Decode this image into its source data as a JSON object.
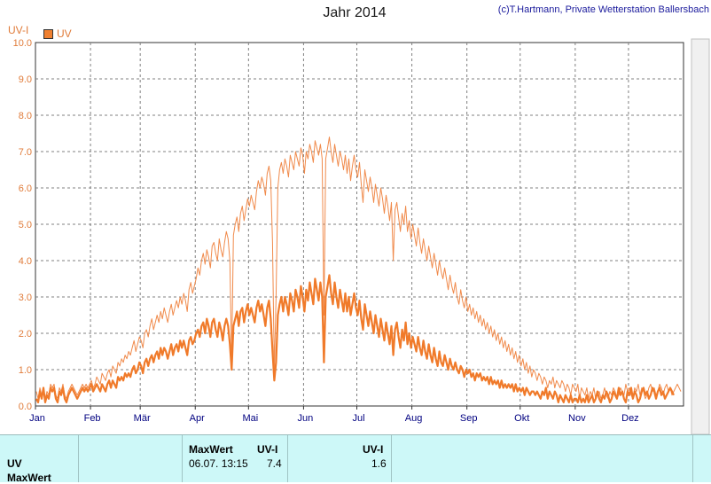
{
  "header": {
    "title": "Jahr 2014",
    "copyright": "(c)T.Hartmann, Private Wetterstation Ballersbach"
  },
  "colors": {
    "series_max": "#f08a4b",
    "series_mean": "#f07a2a",
    "grid": "#808080",
    "table_bg": "#cdf8f8"
  },
  "chart_data": {
    "type": "line",
    "title": "Jahr 2014",
    "ylabel": "UV-I",
    "xlabel": "",
    "ylim": [
      0,
      10
    ],
    "yticks": [
      "0.0",
      "1.0",
      "2.0",
      "3.0",
      "4.0",
      "5.0",
      "6.0",
      "7.0",
      "8.0",
      "9.0",
      "10.0"
    ],
    "xticks": [
      "Jan",
      "Feb",
      "Mär",
      "Apr",
      "Mai",
      "Jun",
      "Jul",
      "Aug",
      "Sep",
      "Okt",
      "Nov",
      "Dez"
    ],
    "grid": true,
    "legend": [
      {
        "label": "UV"
      }
    ],
    "legend_position": "top-left",
    "days": 365,
    "series": [
      {
        "name": "UV",
        "role": "daily-max",
        "values": [
          0.4,
          0.2,
          0.5,
          0.3,
          0.5,
          0.2,
          0.4,
          0.3,
          0.6,
          0.5,
          0.6,
          0.3,
          0.2,
          0.5,
          0.4,
          0.6,
          0.3,
          0.2,
          0.4,
          0.5,
          0.6,
          0.5,
          0.4,
          0.3,
          0.4,
          0.5,
          0.6,
          0.5,
          0.6,
          0.5,
          0.6,
          0.7,
          0.5,
          0.6,
          0.8,
          0.7,
          0.6,
          0.9,
          0.8,
          0.7,
          0.9,
          1.0,
          0.8,
          1.1,
          1.0,
          0.9,
          1.2,
          1.1,
          1.3,
          1.2,
          1.4,
          1.3,
          1.5,
          1.4,
          1.6,
          1.8,
          1.5,
          1.7,
          1.9,
          1.8,
          1.6,
          2.0,
          2.1,
          1.9,
          2.2,
          2.4,
          2.1,
          2.3,
          2.5,
          2.3,
          2.6,
          2.4,
          2.7,
          2.5,
          2.3,
          2.6,
          2.8,
          2.5,
          2.7,
          2.9,
          2.7,
          3.0,
          2.8,
          3.1,
          2.9,
          2.6,
          3.2,
          3.4,
          3.1,
          3.3,
          3.5,
          3.8,
          3.6,
          4.0,
          4.2,
          3.9,
          4.3,
          4.1,
          3.8,
          4.4,
          4.5,
          4.2,
          4.0,
          4.6,
          4.3,
          4.1,
          4.5,
          4.8,
          4.6,
          4.0,
          1.2,
          4.7,
          5.0,
          5.2,
          4.8,
          5.3,
          5.5,
          5.1,
          5.4,
          5.7,
          5.5,
          5.8,
          5.6,
          5.4,
          5.9,
          6.2,
          6.0,
          6.3,
          6.1,
          5.8,
          6.4,
          6.6,
          6.2,
          4.5,
          1.0,
          3.0,
          6.0,
          6.5,
          6.7,
          6.4,
          6.8,
          6.6,
          6.3,
          6.9,
          6.7,
          6.5,
          7.0,
          6.8,
          6.6,
          7.1,
          6.9,
          6.4,
          7.0,
          6.8,
          7.2,
          7.0,
          6.7,
          7.3,
          7.1,
          6.9,
          7.2,
          6.8,
          2.5,
          6.8,
          7.1,
          7.4,
          7.0,
          6.7,
          7.2,
          6.9,
          6.6,
          7.0,
          6.8,
          6.5,
          6.9,
          6.4,
          6.8,
          6.2,
          6.6,
          6.9,
          6.5,
          6.3,
          6.7,
          6.1,
          5.6,
          6.5,
          6.2,
          5.9,
          6.3,
          6.0,
          5.6,
          6.1,
          5.8,
          5.5,
          6.0,
          5.7,
          5.3,
          5.8,
          5.5,
          5.1,
          5.6,
          4.0,
          5.4,
          5.6,
          5.2,
          4.8,
          5.3,
          5.0,
          5.5,
          4.8,
          5.1,
          4.6,
          5.0,
          4.7,
          4.4,
          4.9,
          4.5,
          4.2,
          4.6,
          4.3,
          4.0,
          4.4,
          4.1,
          3.8,
          4.2,
          3.9,
          3.6,
          4.0,
          3.7,
          3.5,
          3.8,
          3.5,
          3.2,
          3.6,
          3.3,
          3.1,
          3.4,
          3.0,
          2.8,
          3.2,
          2.9,
          2.7,
          3.0,
          2.6,
          2.8,
          2.5,
          2.7,
          2.4,
          2.6,
          2.3,
          2.5,
          2.2,
          2.4,
          2.1,
          2.3,
          2.0,
          2.2,
          1.9,
          2.1,
          1.8,
          2.0,
          1.7,
          1.9,
          1.6,
          1.8,
          1.5,
          1.7,
          1.4,
          1.6,
          1.3,
          1.5,
          1.2,
          1.4,
          1.1,
          1.3,
          1.0,
          1.2,
          0.9,
          1.1,
          0.8,
          1.0,
          0.9,
          0.7,
          0.9,
          0.8,
          0.6,
          0.8,
          0.7,
          0.5,
          0.7,
          0.6,
          0.8,
          0.5,
          0.7,
          0.6,
          0.5,
          0.7,
          0.6,
          0.4,
          0.6,
          0.5,
          0.3,
          0.6,
          0.5,
          0.4,
          0.6,
          0.2,
          0.5,
          0.4,
          0.3,
          0.5,
          0.2,
          0.4,
          0.3,
          0.5,
          0.2,
          0.3,
          0.4,
          0.2,
          0.3,
          0.5,
          0.3,
          0.2,
          0.4,
          0.3,
          0.5,
          0.4,
          0.2,
          0.3,
          0.5,
          0.4,
          0.3,
          0.6,
          0.4,
          0.5,
          0.3,
          0.2,
          0.5,
          0.4,
          0.6,
          0.3,
          0.5,
          0.4,
          0.2,
          0.3,
          0.5,
          0.6,
          0.4,
          0.5,
          0.3,
          0.4,
          0.6,
          0.5,
          0.3,
          0.5,
          0.6,
          0.4,
          0.5,
          0.3,
          0.4,
          0.5,
          0.6,
          0.5,
          0.4
        ]
      },
      {
        "name": "UV",
        "role": "daily-mean",
        "values": [
          0.2,
          0.1,
          0.4,
          0.2,
          0.5,
          0.1,
          0.3,
          0.2,
          0.5,
          0.4,
          0.5,
          0.2,
          0.1,
          0.4,
          0.3,
          0.5,
          0.2,
          0.1,
          0.3,
          0.4,
          0.5,
          0.4,
          0.3,
          0.2,
          0.3,
          0.4,
          0.5,
          0.4,
          0.5,
          0.4,
          0.5,
          0.6,
          0.4,
          0.5,
          0.6,
          0.5,
          0.4,
          0.6,
          0.5,
          0.4,
          0.6,
          0.7,
          0.5,
          0.7,
          0.6,
          0.5,
          0.8,
          0.7,
          0.8,
          0.7,
          0.9,
          0.8,
          0.9,
          0.8,
          1.0,
          1.1,
          0.9,
          1.0,
          1.2,
          1.1,
          0.9,
          1.2,
          1.3,
          1.1,
          1.3,
          1.4,
          1.2,
          1.4,
          1.5,
          1.3,
          1.6,
          1.4,
          1.6,
          1.5,
          1.3,
          1.5,
          1.7,
          1.4,
          1.6,
          1.7,
          1.5,
          1.8,
          1.6,
          1.8,
          1.6,
          1.4,
          1.8,
          1.9,
          1.7,
          1.8,
          2.0,
          2.1,
          1.9,
          2.2,
          2.3,
          2.0,
          2.4,
          2.2,
          1.9,
          2.3,
          2.4,
          2.1,
          1.9,
          2.3,
          2.1,
          1.8,
          2.2,
          2.4,
          2.2,
          1.7,
          1.0,
          2.2,
          2.4,
          2.6,
          2.2,
          2.6,
          2.7,
          2.3,
          2.6,
          2.8,
          2.5,
          2.7,
          2.5,
          2.3,
          2.7,
          2.9,
          2.6,
          2.8,
          2.5,
          2.2,
          2.7,
          2.9,
          2.4,
          1.5,
          0.7,
          1.2,
          2.5,
          2.8,
          3.0,
          2.6,
          3.0,
          2.8,
          2.5,
          3.1,
          2.9,
          2.6,
          3.2,
          3.0,
          2.7,
          3.3,
          3.0,
          2.6,
          3.2,
          2.9,
          3.4,
          3.1,
          2.8,
          3.5,
          3.2,
          2.9,
          3.4,
          3.0,
          1.2,
          3.0,
          3.3,
          3.6,
          3.1,
          2.8,
          3.4,
          3.0,
          2.7,
          3.2,
          2.9,
          2.6,
          3.1,
          2.6,
          3.0,
          2.5,
          2.8,
          3.1,
          2.7,
          2.5,
          2.9,
          2.4,
          2.1,
          2.8,
          2.5,
          2.2,
          2.6,
          2.3,
          2.0,
          2.5,
          2.2,
          1.9,
          2.4,
          2.1,
          1.8,
          2.3,
          2.0,
          1.7,
          2.2,
          1.4,
          2.1,
          2.3,
          1.9,
          1.6,
          2.1,
          1.8,
          2.3,
          1.7,
          2.0,
          1.6,
          1.9,
          1.7,
          1.5,
          1.9,
          1.6,
          1.4,
          1.8,
          1.5,
          1.3,
          1.7,
          1.4,
          1.2,
          1.6,
          1.3,
          1.1,
          1.5,
          1.2,
          1.1,
          1.4,
          1.2,
          1.0,
          1.3,
          1.1,
          1.0,
          1.2,
          1.0,
          0.9,
          1.1,
          1.0,
          0.8,
          1.0,
          0.9,
          1.0,
          0.8,
          0.9,
          0.7,
          0.9,
          0.8,
          0.9,
          0.7,
          0.8,
          0.7,
          0.8,
          0.6,
          0.8,
          0.6,
          0.7,
          0.6,
          0.7,
          0.5,
          0.7,
          0.5,
          0.6,
          0.5,
          0.6,
          0.5,
          0.6,
          0.4,
          0.6,
          0.4,
          0.5,
          0.4,
          0.5,
          0.3,
          0.5,
          0.4,
          0.3,
          0.4,
          0.4,
          0.3,
          0.4,
          0.3,
          0.2,
          0.4,
          0.3,
          0.5,
          0.2,
          0.4,
          0.3,
          0.2,
          0.4,
          0.3,
          0.1,
          0.3,
          0.2,
          0.1,
          0.3,
          0.2,
          0.1,
          0.3,
          0.1,
          0.2,
          0.2,
          0.1,
          0.3,
          0.1,
          0.2,
          0.1,
          0.3,
          0.1,
          0.2,
          0.3,
          0.1,
          0.2,
          0.4,
          0.2,
          0.1,
          0.3,
          0.2,
          0.4,
          0.3,
          0.1,
          0.2,
          0.4,
          0.3,
          0.2,
          0.5,
          0.3,
          0.4,
          0.2,
          0.1,
          0.4,
          0.3,
          0.5,
          0.2,
          0.4,
          0.3,
          0.1,
          0.2,
          0.4,
          0.5,
          0.3,
          0.4,
          0.2,
          0.3,
          0.5,
          0.4,
          0.2,
          0.4,
          0.5,
          0.3,
          0.4,
          0.2,
          0.3,
          0.4,
          0.5,
          0.4,
          0.3
        ]
      }
    ]
  },
  "table": {
    "row_label_1": "UV",
    "row_label_2": "MaxWert",
    "max_header": "MaxWert",
    "max_unit_header": "UV-I",
    "max_time": "06.07.  13:15",
    "max_value": "7.4",
    "avg_unit_header": "UV-I",
    "avg_value": "1.6"
  }
}
